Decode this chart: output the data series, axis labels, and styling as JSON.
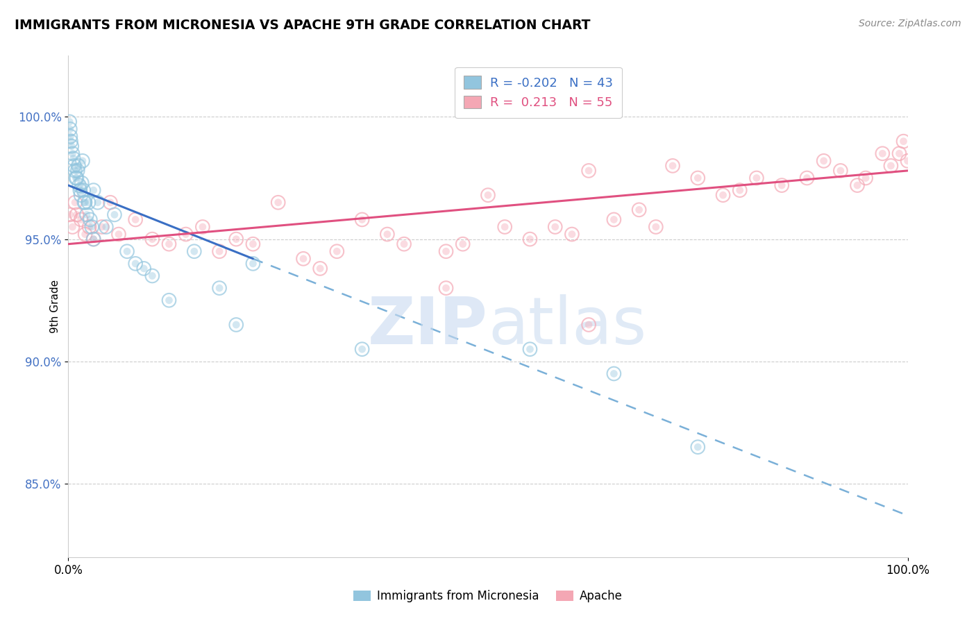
{
  "title": "IMMIGRANTS FROM MICRONESIA VS APACHE 9TH GRADE CORRELATION CHART",
  "source_text": "Source: ZipAtlas.com",
  "ylabel": "9th Grade",
  "legend_blue_r": "-0.202",
  "legend_blue_n": "43",
  "legend_pink_r": "0.213",
  "legend_pink_n": "55",
  "blue_color": "#92c5de",
  "pink_color": "#f4a7b4",
  "trend_blue_color": "#3a6fc4",
  "trend_pink_color": "#e05080",
  "trend_dash_color": "#7ab0d8",
  "x_min": 0.0,
  "x_max": 100.0,
  "y_min": 82.0,
  "y_max": 102.5,
  "y_ticks": [
    85.0,
    90.0,
    95.0,
    100.0
  ],
  "y_tick_labels": [
    "85.0%",
    "90.0%",
    "95.0%",
    "100.0%"
  ],
  "blue_trend_x0": 0.0,
  "blue_trend_y0": 97.2,
  "blue_trend_x1": 22.0,
  "blue_trend_y1": 94.2,
  "blue_dash_x0": 22.0,
  "blue_dash_y0": 94.2,
  "blue_dash_x1": 100.0,
  "blue_dash_y1": 83.7,
  "pink_trend_x0": 0.0,
  "pink_trend_y0": 94.8,
  "pink_trend_x1": 100.0,
  "pink_trend_y1": 97.8,
  "blue_points_x": [
    0.15,
    0.2,
    0.25,
    0.3,
    0.4,
    0.5,
    0.6,
    0.7,
    0.8,
    0.9,
    1.0,
    1.1,
    1.2,
    1.3,
    1.4,
    1.5,
    1.6,
    1.7,
    1.8,
    1.9,
    2.0,
    2.2,
    2.4,
    2.6,
    2.8,
    3.0,
    3.5,
    4.5,
    5.5,
    7.0,
    8.0,
    9.0,
    10.0,
    12.0,
    15.0,
    18.0,
    20.0,
    22.0,
    35.0,
    55.0,
    65.0,
    75.0,
    3.0
  ],
  "blue_points_y": [
    99.8,
    99.5,
    99.2,
    99.0,
    98.8,
    98.5,
    98.3,
    98.0,
    97.8,
    97.5,
    97.5,
    97.8,
    98.0,
    97.2,
    97.0,
    96.8,
    97.3,
    98.2,
    97.0,
    96.5,
    96.5,
    96.0,
    96.5,
    95.8,
    95.5,
    97.0,
    96.5,
    95.5,
    96.0,
    94.5,
    94.0,
    93.8,
    93.5,
    92.5,
    94.5,
    93.0,
    91.5,
    94.0,
    90.5,
    90.5,
    89.5,
    86.5,
    95.0
  ],
  "pink_points_x": [
    0.2,
    0.5,
    0.8,
    1.0,
    1.5,
    2.0,
    2.5,
    3.0,
    4.0,
    5.0,
    6.0,
    8.0,
    10.0,
    12.0,
    14.0,
    16.0,
    18.0,
    20.0,
    22.0,
    25.0,
    28.0,
    30.0,
    32.0,
    35.0,
    38.0,
    40.0,
    45.0,
    47.0,
    50.0,
    52.0,
    55.0,
    58.0,
    60.0,
    62.0,
    65.0,
    68.0,
    70.0,
    72.0,
    75.0,
    78.0,
    80.0,
    82.0,
    85.0,
    88.0,
    90.0,
    92.0,
    94.0,
    95.0,
    97.0,
    98.0,
    99.0,
    99.5,
    100.0,
    45.0,
    62.0
  ],
  "pink_points_y": [
    96.0,
    95.5,
    96.5,
    96.0,
    95.8,
    95.2,
    95.5,
    95.0,
    95.5,
    96.5,
    95.2,
    95.8,
    95.0,
    94.8,
    95.2,
    95.5,
    94.5,
    95.0,
    94.8,
    96.5,
    94.2,
    93.8,
    94.5,
    95.8,
    95.2,
    94.8,
    94.5,
    94.8,
    96.8,
    95.5,
    95.0,
    95.5,
    95.2,
    97.8,
    95.8,
    96.2,
    95.5,
    98.0,
    97.5,
    96.8,
    97.0,
    97.5,
    97.2,
    97.5,
    98.2,
    97.8,
    97.2,
    97.5,
    98.5,
    98.0,
    98.5,
    99.0,
    98.2,
    93.0,
    91.5
  ]
}
